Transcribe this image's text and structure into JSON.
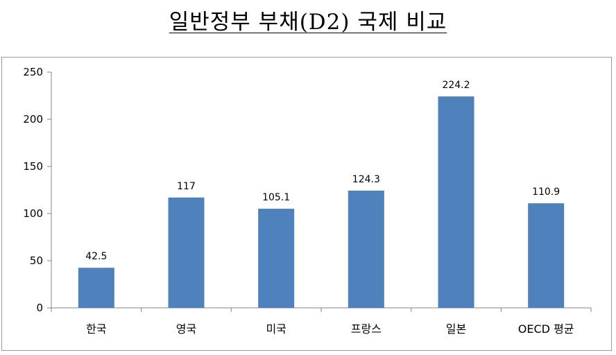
{
  "chart_data": {
    "type": "bar",
    "title": "일반정부 부채(D2) 국제 비교",
    "categories": [
      "한국",
      "영국",
      "미국",
      "프랑스",
      "일본",
      "OECD 평균"
    ],
    "series": [
      {
        "values": [
          42.5,
          117,
          105.1,
          124.3,
          224.2,
          110.9
        ],
        "data_labels": [
          "42.5",
          "117",
          "105.1",
          "124.3",
          "224.2",
          "110.9"
        ]
      }
    ],
    "yticks": [
      0,
      50,
      100,
      150,
      200,
      250
    ],
    "ylim": [
      0,
      250
    ],
    "xlabel": "",
    "ylabel": "",
    "grid": false,
    "legend": "none",
    "bar_color": "#4F81BD"
  }
}
